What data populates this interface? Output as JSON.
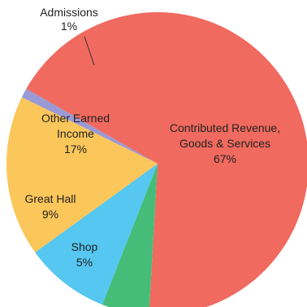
{
  "chart_data": {
    "type": "pie",
    "slices": [
      {
        "label": [
          "Admissions"
        ],
        "value_label": "1%",
        "value": 1,
        "color": "#9b9ad6"
      },
      {
        "label": [
          "Contributed Revenue,",
          "Goods & Services"
        ],
        "value_label": "67%",
        "value": 67,
        "color": "#f06a5f"
      },
      {
        "label": [
          "Shop"
        ],
        "value_label": "5%",
        "value": 5,
        "color": "#45bd78"
      },
      {
        "label": [
          "Great Hall"
        ],
        "value_label": "9%",
        "value": 9,
        "color": "#55c7f0"
      },
      {
        "label": [
          "Other Earned",
          "Income"
        ],
        "value_label": "17%",
        "value": 17,
        "color": "#fbc65a"
      }
    ],
    "legend": "none"
  }
}
